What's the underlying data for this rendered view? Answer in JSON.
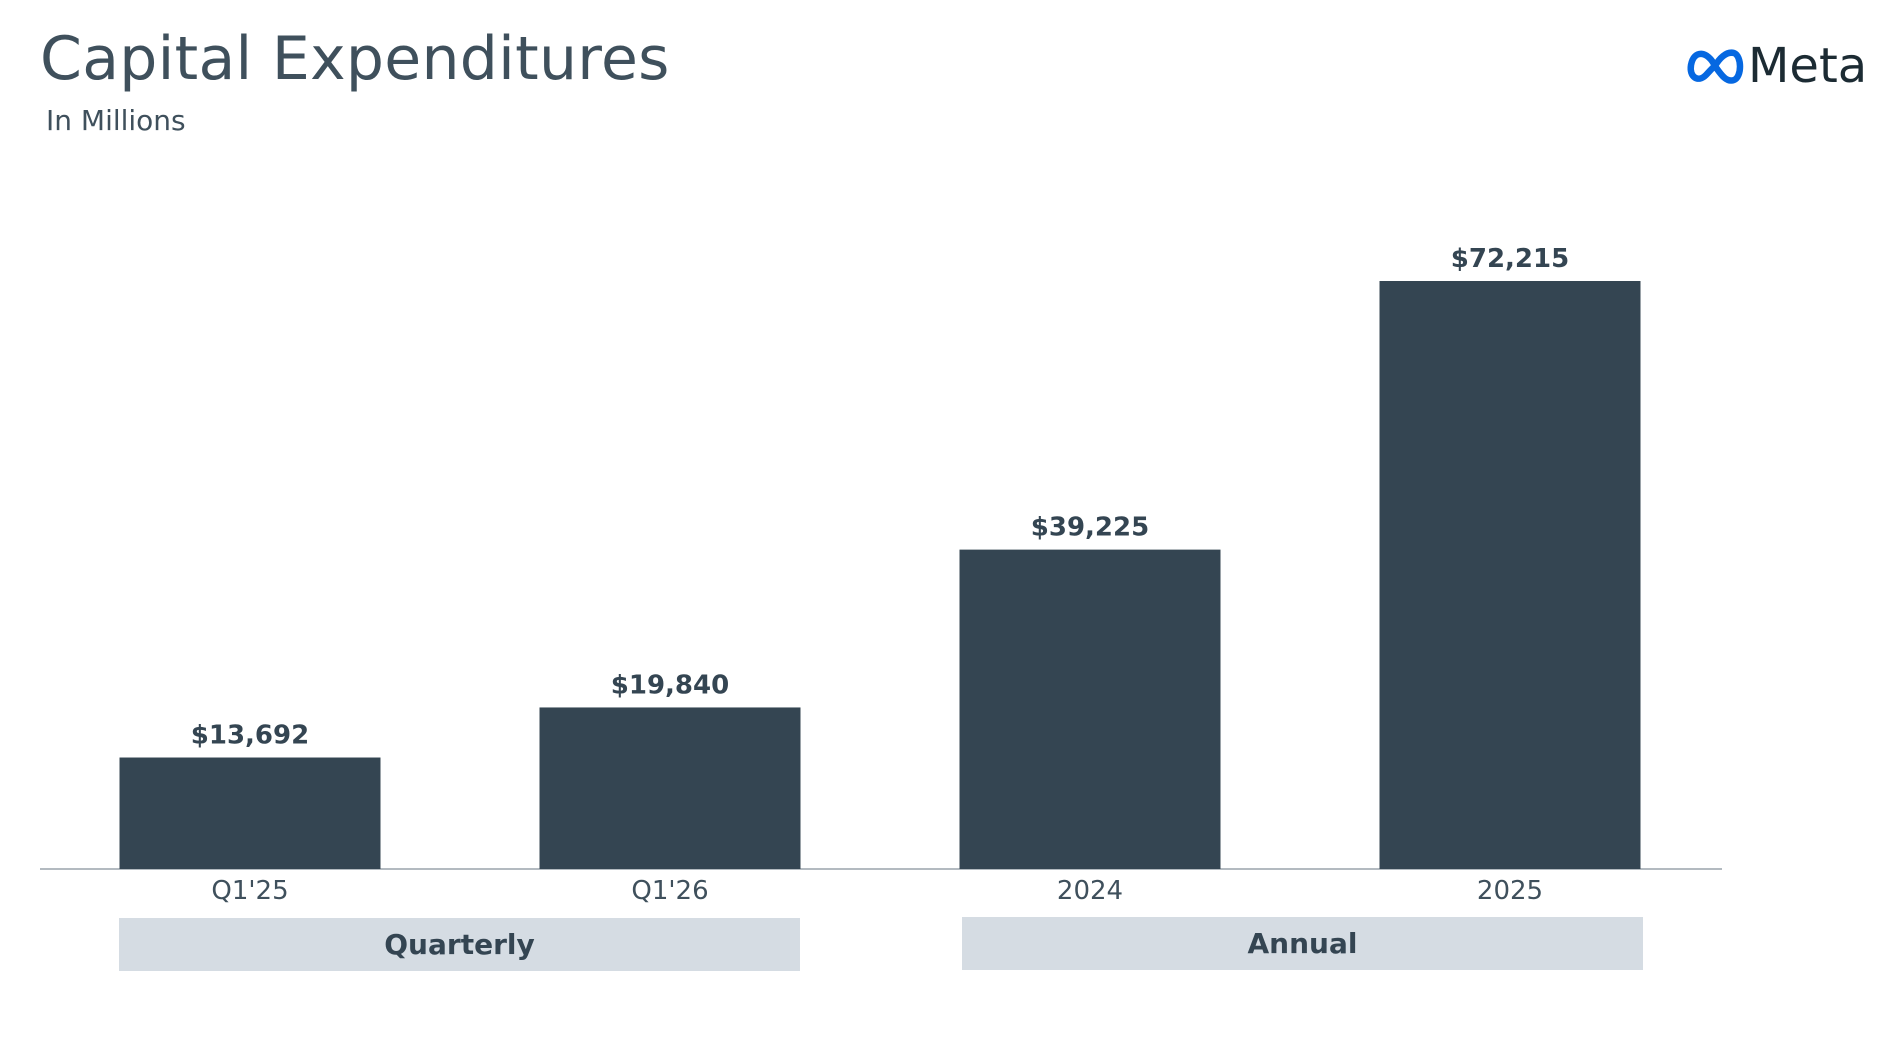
{
  "header": {
    "title": "Capital Expenditures",
    "subtitle": "In Millions"
  },
  "logo": {
    "icon": "meta-infinity-icon",
    "text": "Meta",
    "icon_color": "#0668e1"
  },
  "colors": {
    "bar": "#344552",
    "axis": "#9aa4ac",
    "group_box": "#d5dce3"
  },
  "groups": [
    {
      "label": "Quarterly",
      "categories": [
        "Q1'25",
        "Q1'26"
      ]
    },
    {
      "label": "Annual",
      "categories": [
        "2024",
        "2025"
      ]
    }
  ],
  "chart_data": {
    "type": "bar",
    "title": "Capital Expenditures",
    "subtitle": "In Millions",
    "categories": [
      "Q1'25",
      "Q1'26",
      "2024",
      "2025"
    ],
    "values": [
      13692,
      19840,
      39225,
      72215
    ],
    "value_labels": [
      "$13,692",
      "$19,840",
      "$39,225",
      "$72,215"
    ],
    "xlabel": "",
    "ylabel": "",
    "ylim": [
      0,
      80000
    ],
    "grid": false,
    "legend": "none"
  }
}
